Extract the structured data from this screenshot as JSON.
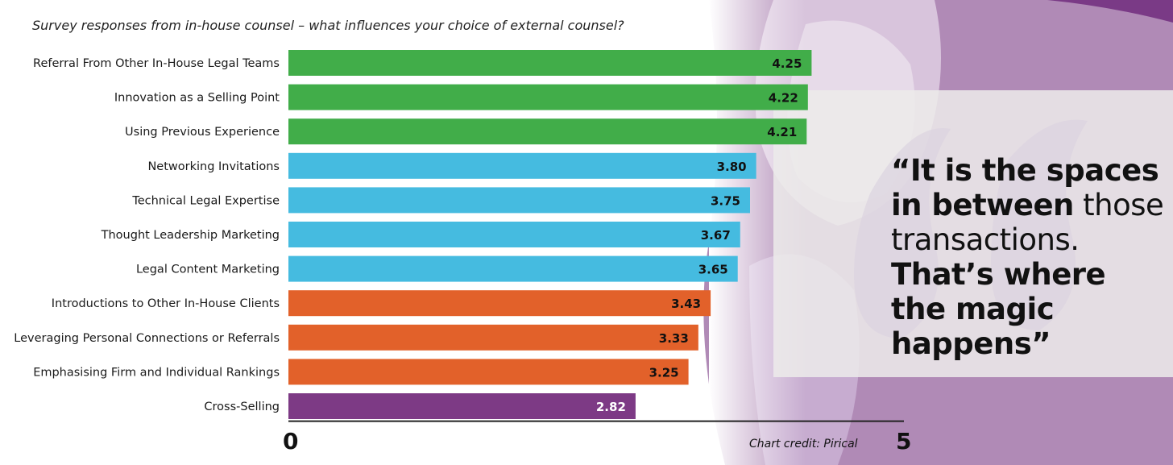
{
  "chart_data": {
    "type": "bar",
    "orientation": "horizontal",
    "title": "Survey responses from in-house counsel – what influences  your choice of external counsel?",
    "categories": [
      "Referral From Other In-House Legal Teams",
      "Innovation as a Selling Point",
      "Using Previous Experience",
      "Networking Invitations",
      "Technical Legal Expertise",
      "Thought Leadership Marketing",
      "Legal Content Marketing",
      "Introductions to Other In-House Clients",
      "Leveraging Personal Connections or Referrals",
      "Emphasising Firm and Individual Rankings",
      "Cross-Selling"
    ],
    "values": [
      4.25,
      4.22,
      4.21,
      3.8,
      3.75,
      3.67,
      3.65,
      3.43,
      3.33,
      3.25,
      2.82
    ],
    "value_labels": [
      "4.25",
      "4.22",
      "4.21",
      "3.80",
      "3.75",
      "3.67",
      "3.65",
      "3.43",
      "3.33",
      "3.25",
      "2.82"
    ],
    "bar_colors": [
      "#41ad49",
      "#41ad49",
      "#41ad49",
      "#45bbe0",
      "#45bbe0",
      "#45bbe0",
      "#45bbe0",
      "#e2612a",
      "#e2612a",
      "#e2612a",
      "#7d3a85"
    ],
    "value_label_colors": [
      "#111111",
      "#111111",
      "#111111",
      "#111111",
      "#111111",
      "#111111",
      "#111111",
      "#111111",
      "#111111",
      "#111111",
      "#ffffff"
    ],
    "xlim": [
      0,
      5
    ],
    "x_tick_labels": [
      "0",
      "5"
    ],
    "grid": false
  },
  "quote": {
    "part1": "“It is the spaces in between",
    "part2": " those transactions. ",
    "part3": "That’s where the magic happens”"
  },
  "credit": "Chart credit: Pirical",
  "colors": {
    "purple_bg": "#a577ac",
    "purple_light": "#dccbe0",
    "quote_panel": "#ecebea"
  }
}
